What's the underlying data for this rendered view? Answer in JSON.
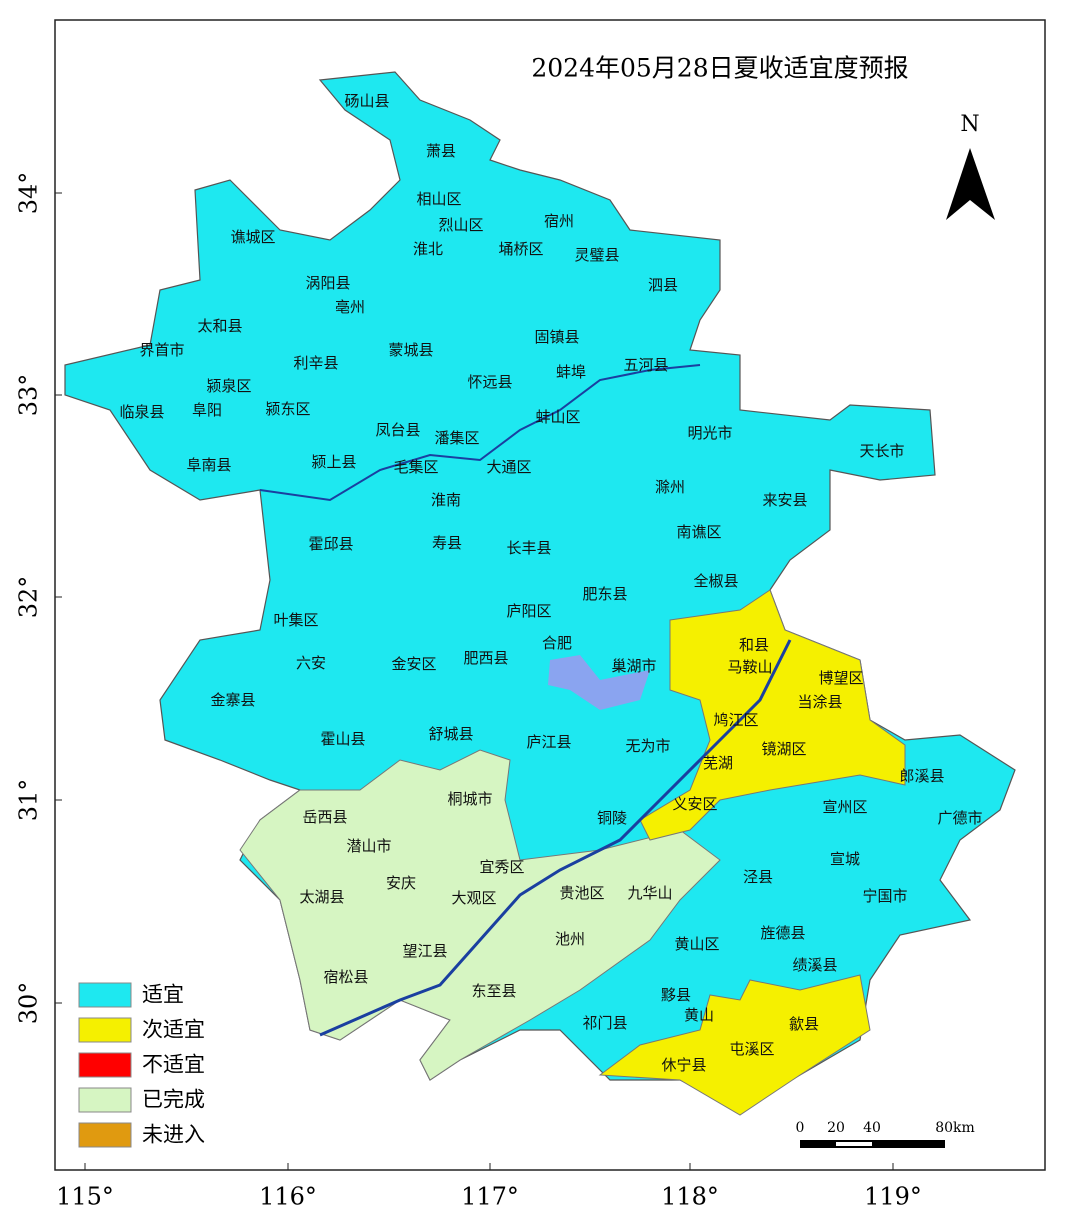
{
  "title": "2024年05月28日夏收适宜度预报",
  "north": "N",
  "lat_ticks": [
    "34°",
    "33°",
    "32°",
    "31°",
    "30°"
  ],
  "lon_ticks": [
    "115°",
    "116°",
    "117°",
    "118°",
    "119°"
  ],
  "legend": [
    {
      "label": "适宜",
      "color": "#1ee8f0"
    },
    {
      "label": "次适宜",
      "color": "#f5f000"
    },
    {
      "label": "不适宜",
      "color": "#ff0000"
    },
    {
      "label": "已完成",
      "color": "#d6f5c2"
    },
    {
      "label": "未进入",
      "color": "#e09a10"
    }
  ],
  "scale_bar": [
    "0",
    "20",
    "40",
    "80km"
  ],
  "places": [
    "砀山县",
    "萧县",
    "相山区",
    "烈山区",
    "淮北",
    "宿州",
    "埇桥区",
    "灵璧县",
    "泗县",
    "谯城区",
    "涡阳县",
    "亳州",
    "太和县",
    "界首市",
    "利辛县",
    "蒙城县",
    "固镇县",
    "怀远县",
    "蚌埠",
    "五河县",
    "颍泉区",
    "阜阳",
    "颍东区",
    "临泉县",
    "凤台县",
    "潘集区",
    "蚌山区",
    "明光市",
    "天长市",
    "阜南县",
    "颍上县",
    "毛集区",
    "大通区",
    "淮南",
    "滁州",
    "来安县",
    "霍邱县",
    "寿县",
    "长丰县",
    "南谯区",
    "全椒县",
    "肥东县",
    "庐阳区",
    "叶集区",
    "合肥",
    "和县",
    "马鞍山",
    "肥西县",
    "巢湖市",
    "博望区",
    "六安",
    "金安区",
    "当涂县",
    "金寨县",
    "鸠江区",
    "霍山县",
    "舒城县",
    "庐江县",
    "无为市",
    "镜湖区",
    "芜湖",
    "郎溪县",
    "桐城市",
    "义安区",
    "宣州区",
    "岳西县",
    "铜陵",
    "广德市",
    "潜山市",
    "宣城",
    "宜秀区",
    "安庆",
    "贵池区",
    "九华山",
    "泾县",
    "太湖县",
    "大观区",
    "宁国市",
    "望江县",
    "池州",
    "黄山区",
    "旌德县",
    "宿松县",
    "东至县",
    "绩溪县",
    "黟县",
    "祁门县",
    "黄山",
    "歙县",
    "屯溪区",
    "休宁县"
  ]
}
